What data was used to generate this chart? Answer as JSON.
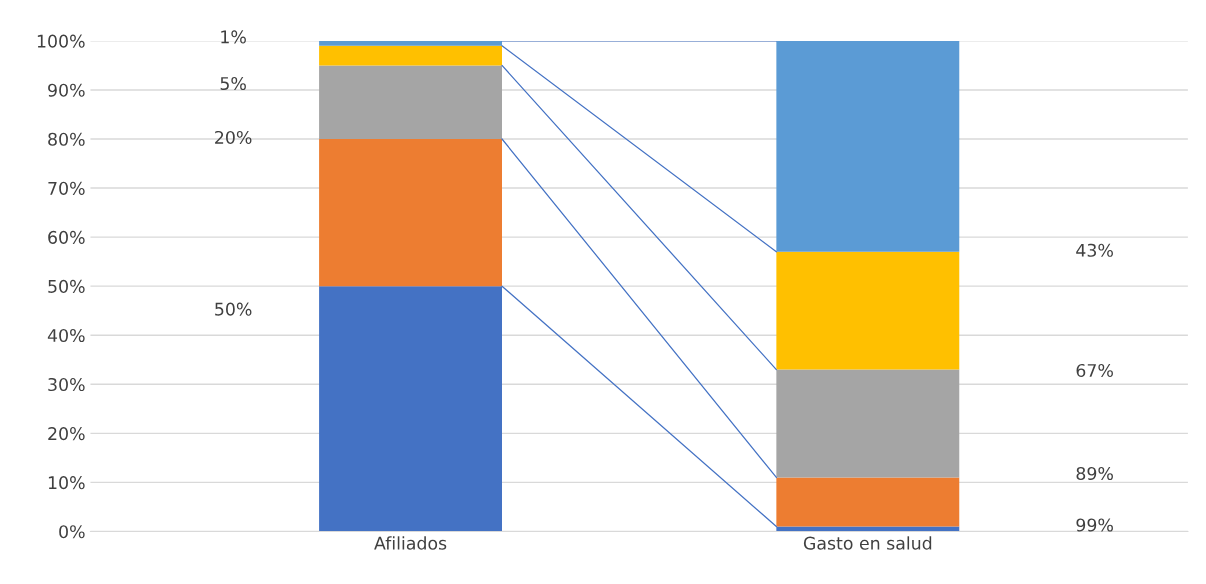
{
  "chart_data": {
    "type": "bar",
    "stacked": true,
    "categories": [
      "Afiliados",
      "Gasto en salud"
    ],
    "series": [
      {
        "color": "#4472c4",
        "values": [
          50,
          1
        ]
      },
      {
        "color": "#ed7d31",
        "values": [
          30,
          10
        ]
      },
      {
        "color": "#a5a5a5",
        "values": [
          15,
          22
        ]
      },
      {
        "color": "#ffc000",
        "values": [
          4,
          24
        ]
      },
      {
        "color": "#5b9bd5",
        "values": [
          1,
          43
        ]
      }
    ],
    "ylim": [
      0,
      100
    ],
    "yticks": [
      {
        "value": 0,
        "label": "0%"
      },
      {
        "value": 10,
        "label": "10%"
      },
      {
        "value": 20,
        "label": "20%"
      },
      {
        "value": 30,
        "label": "30%"
      },
      {
        "value": 40,
        "label": "40%"
      },
      {
        "value": 50,
        "label": "50%"
      },
      {
        "value": 60,
        "label": "60%"
      },
      {
        "value": 70,
        "label": "70%"
      },
      {
        "value": 80,
        "label": "80%"
      },
      {
        "value": 90,
        "label": "90%"
      },
      {
        "value": 100,
        "label": "100%"
      }
    ],
    "grid": "y",
    "annotations": [
      "1%",
      "5%",
      "20%",
      "50%",
      "43%",
      "67%",
      "89%",
      "99%"
    ]
  }
}
